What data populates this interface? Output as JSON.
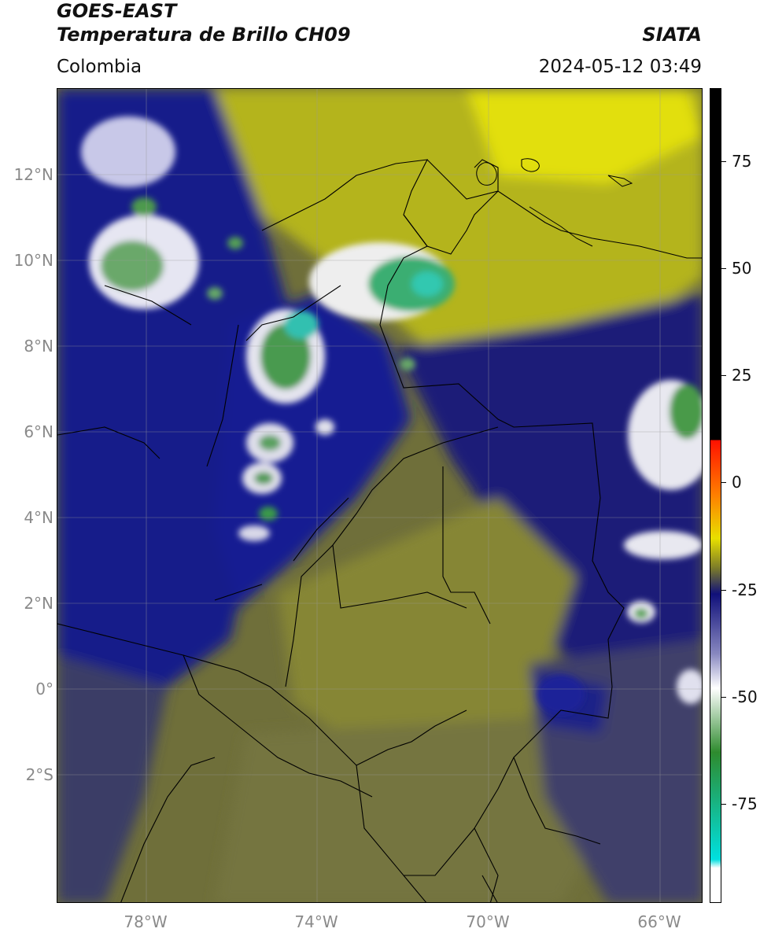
{
  "header": {
    "satellite": "GOES-EAST",
    "product": "Temperatura de Brillo CH09",
    "region": "Colombia",
    "agency": "SIATA",
    "datetime": "2024-05-12 03:49"
  },
  "map": {
    "lon_range": [
      -80,
      -65
    ],
    "lat_range": [
      -5,
      14
    ],
    "lat_ticks": [
      "12°N",
      "10°N",
      "8°N",
      "6°N",
      "4°N",
      "2°N",
      "0°",
      "2°S"
    ],
    "lon_ticks": [
      "78°W",
      "74°W",
      "70°W",
      "66°W"
    ],
    "grid": true
  },
  "colorbar": {
    "range": [
      -100,
      90
    ],
    "ticks": [
      "75",
      "50",
      "25",
      "0",
      "-25",
      "-50",
      "-75"
    ],
    "colors": {
      "white": "#ffffff",
      "cyan": "#00e0e0",
      "green": "#2e8b2e",
      "navy": "#10107a",
      "olive": "#7a7a2a",
      "yellow": "#e8e000",
      "orange": "#ff8000",
      "red": "#ff1000",
      "black": "#000000"
    }
  }
}
